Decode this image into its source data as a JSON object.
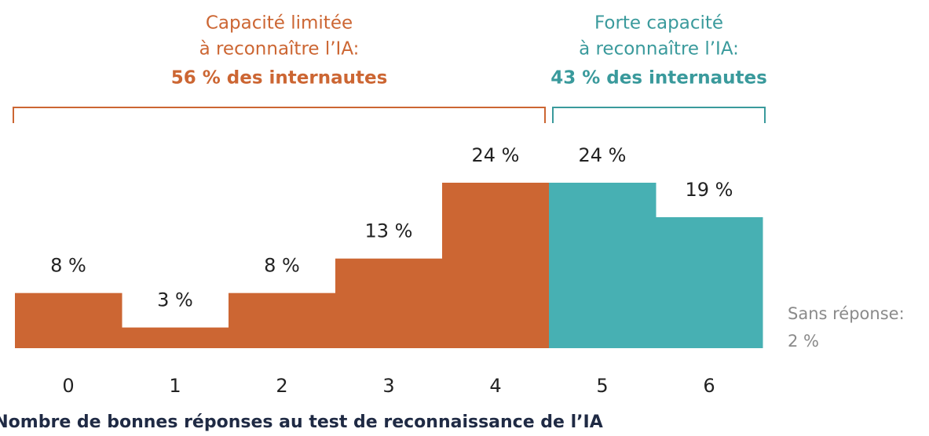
{
  "chart_data": {
    "type": "bar",
    "categories": [
      "0",
      "1",
      "2",
      "3",
      "4",
      "5",
      "6"
    ],
    "values": [
      8,
      3,
      8,
      13,
      24,
      24,
      19
    ],
    "value_labels": [
      "8 %",
      "3 %",
      "8 %",
      "13 %",
      "24 %",
      "24 %",
      "19 %"
    ],
    "colors": [
      "#cc6633",
      "#cc6633",
      "#cc6633",
      "#cc6633",
      "#cc6633",
      "#47b0b3",
      "#47b0b3"
    ],
    "x_label": "Nombre de bonnes réponses au test de reconnaissance de l’IA",
    "groups": [
      {
        "lines": [
          "Capacité limitée",
          "à reconnaître l’IA:"
        ],
        "summary": "56 % des internautes",
        "color": "#cc6633",
        "from": "0",
        "to": "4"
      },
      {
        "lines": [
          "Forte capacité",
          "à reconnaître l’IA:"
        ],
        "summary": "43 % des internautes",
        "color": "#3a9a9c",
        "from": "5",
        "to": "6"
      }
    ],
    "note": [
      "Sans réponse:",
      "2 %"
    ]
  }
}
